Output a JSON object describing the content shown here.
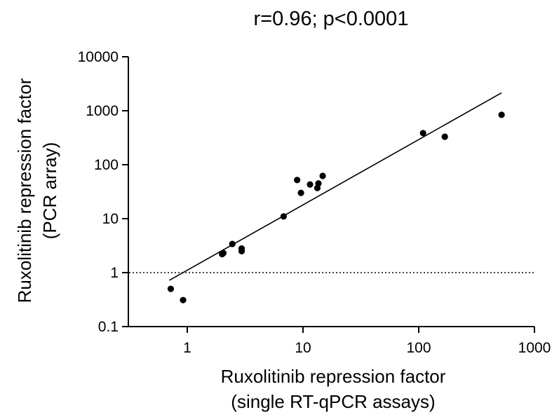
{
  "chart_data": {
    "type": "scatter",
    "title": "r=0.96; p<0.0001",
    "xlabel": [
      "Ruxolitinib repression factor",
      "(single RT-qPCR assays)"
    ],
    "ylabel": [
      "Ruxolitinib repression factor",
      "(PCR array)"
    ],
    "x_scale": "log",
    "y_scale": "log",
    "xlim": [
      0.25,
      1000
    ],
    "ylim": [
      0.1,
      10000
    ],
    "x_ticks": [
      1,
      10,
      100,
      1000
    ],
    "x_tick_labels": [
      "1",
      "10",
      "100",
      "1000"
    ],
    "y_ticks": [
      0.1,
      1,
      10,
      100,
      1000,
      10000
    ],
    "y_tick_labels": [
      "0.1",
      "1",
      "10",
      "100",
      "1000",
      "10000"
    ],
    "grid": false,
    "legend": "none",
    "points": [
      {
        "x": 0.72,
        "y": 0.5
      },
      {
        "x": 0.92,
        "y": 0.31
      },
      {
        "x": 2.0,
        "y": 2.2
      },
      {
        "x": 2.05,
        "y": 2.3
      },
      {
        "x": 2.45,
        "y": 3.4
      },
      {
        "x": 2.95,
        "y": 2.5
      },
      {
        "x": 2.95,
        "y": 2.8
      },
      {
        "x": 6.8,
        "y": 11
      },
      {
        "x": 8.9,
        "y": 52
      },
      {
        "x": 9.6,
        "y": 30
      },
      {
        "x": 11.5,
        "y": 43
      },
      {
        "x": 13.3,
        "y": 37
      },
      {
        "x": 13.6,
        "y": 45
      },
      {
        "x": 14.8,
        "y": 62
      },
      {
        "x": 109,
        "y": 385
      },
      {
        "x": 168,
        "y": 330
      },
      {
        "x": 520,
        "y": 840
      }
    ],
    "regression_line": {
      "x": [
        0.7,
        520
      ],
      "y": [
        0.72,
        2150
      ]
    },
    "reference_line": {
      "y": 1,
      "style": "dotted"
    },
    "colors": {
      "points": "#000000",
      "lines": "#000000"
    }
  }
}
